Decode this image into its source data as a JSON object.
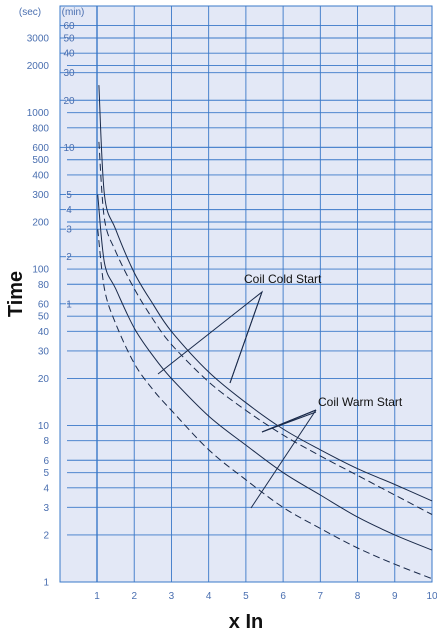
{
  "chart_data": {
    "type": "line",
    "title": "",
    "xlabel": "x In",
    "ylabel": "Time",
    "x_scale": "linear",
    "y_scale": "log",
    "xlim": [
      0,
      10
    ],
    "ylim_sec": [
      1,
      5000
    ],
    "x_ticks": [
      "1",
      "2",
      "3",
      "4",
      "5",
      "6",
      "7",
      "8",
      "9",
      "10"
    ],
    "y_unit_sec": "(sec)",
    "y_unit_min": "(min)",
    "y_ticks_sec": [
      "3000",
      "2000",
      "1000",
      "800",
      "600",
      "500",
      "400",
      "300",
      "200",
      "100",
      "80",
      "60",
      "50",
      "40",
      "30",
      "20",
      "10",
      "8",
      "6",
      "5",
      "4",
      "3",
      "2",
      "1"
    ],
    "y_ticks_min": [
      "60",
      "50",
      "40",
      "30",
      "20",
      "10",
      "5",
      "4",
      "3",
      "2",
      "1"
    ],
    "grid": true,
    "colors": {
      "plot_bg": "#e3e8f6",
      "grid": "#3a78c8",
      "curve": "#1a2a4a",
      "ticks": "#4a6fb0"
    },
    "annotations": [
      {
        "text": "Coil Cold Start"
      },
      {
        "text": "Coil Warm Start"
      }
    ],
    "series": [
      {
        "style": "solid",
        "x": [
          1.05,
          1.2,
          1.5,
          2,
          2.5,
          3,
          4,
          5,
          6,
          7,
          8,
          9,
          10
        ],
        "y": [
          1500,
          300,
          180,
          95,
          60,
          40,
          22,
          14,
          9.5,
          7,
          5.3,
          4.2,
          3.3
        ]
      },
      {
        "style": "dashed",
        "x": [
          1.05,
          1.2,
          1.5,
          2,
          2.5,
          3,
          4,
          5,
          6,
          7,
          8,
          9,
          10
        ],
        "y": [
          650,
          210,
          130,
          75,
          48,
          33,
          19,
          12.5,
          8.7,
          6.4,
          4.8,
          3.6,
          2.7
        ]
      },
      {
        "style": "solid",
        "x": [
          1.02,
          1.2,
          1.5,
          2,
          2.5,
          3,
          4,
          5,
          6,
          7,
          8,
          9,
          10
        ],
        "y": [
          300,
          110,
          75,
          42,
          28,
          20,
          11.5,
          7.5,
          5,
          3.6,
          2.6,
          2,
          1.6
        ]
      },
      {
        "style": "dashed",
        "x": [
          1.02,
          1.2,
          1.5,
          2,
          2.5,
          3,
          4,
          5,
          6,
          7,
          8,
          9,
          10
        ],
        "y": [
          180,
          75,
          45,
          25,
          17,
          12.5,
          7,
          4.5,
          3,
          2.2,
          1.65,
          1.3,
          1.05
        ]
      }
    ]
  }
}
